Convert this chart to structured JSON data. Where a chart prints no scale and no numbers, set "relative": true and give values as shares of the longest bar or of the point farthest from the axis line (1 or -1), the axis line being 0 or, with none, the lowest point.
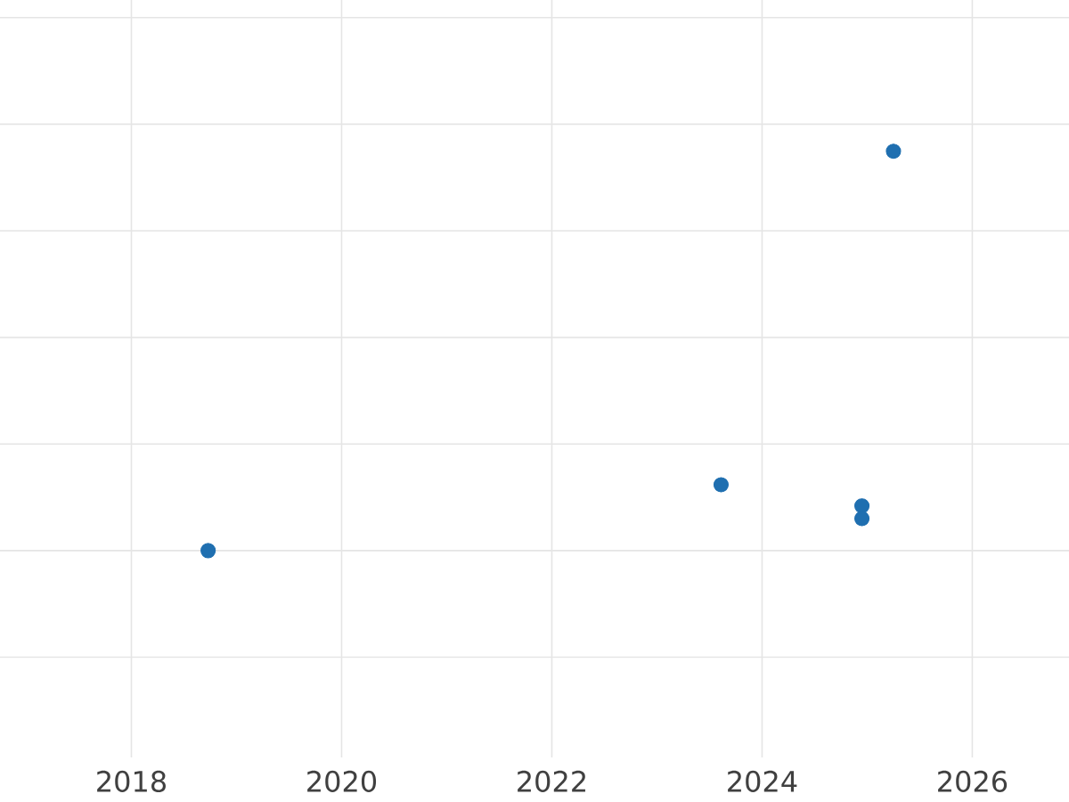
{
  "chart_data": {
    "type": "scatter",
    "relative": true,
    "x": [
      2018.73,
      2023.61,
      2024.95,
      2024.95,
      2025.25
    ],
    "values": [
      0,
      0.165,
      0.112,
      0.08,
      1
    ],
    "color": "#1f6fb0",
    "xlim": [
      2016.75,
      2026.92
    ],
    "xticks": [
      2018,
      2020,
      2022,
      2024,
      2026
    ],
    "grid": true
  }
}
